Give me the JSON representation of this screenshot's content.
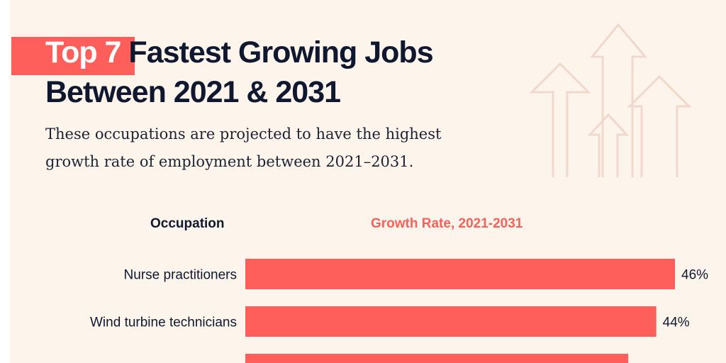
{
  "title": {
    "highlight": "Top 7",
    "line1_rest": "Fastest Growing Jobs",
    "line2": "Between 2021 & 2031"
  },
  "subtitle": "These occupations are projected to have the highest growth rate of employment between 2021–2031.",
  "colors": {
    "bar": "#ff5f5a",
    "text": "#101830",
    "background": "#fdf5ec",
    "accent_header": "#ff5f5a"
  },
  "decoration": "rising-arrows-icon",
  "chart_data": {
    "type": "bar",
    "orientation": "horizontal",
    "column_headers": {
      "category": "Occupation",
      "value": "Growth Rate, 2021-2031"
    },
    "categories": [
      "Nurse practitioners",
      "Wind turbine technicians",
      ""
    ],
    "values": [
      46,
      44,
      41
    ],
    "value_labels": [
      "46%",
      "44%",
      ""
    ],
    "unit": "%",
    "xlim": [
      0,
      46
    ],
    "grid": false
  }
}
